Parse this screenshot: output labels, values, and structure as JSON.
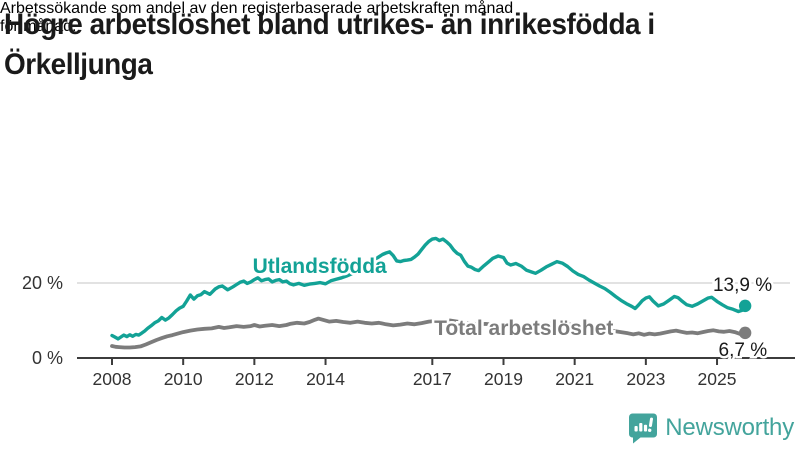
{
  "header": {
    "title_lines": [
      "Högre arbetslöshet bland utrikes- än inrikesfödda i",
      "Örkelljunga"
    ],
    "subtitle_lines": [
      "Arbetssökande som andel av den registerbaserade arbetskraften månad",
      "för månad."
    ]
  },
  "footer": {
    "brand": "Newsworthy",
    "logo_icon": "bar-chart-speech-bubble-icon"
  },
  "colors": {
    "teal": "#13a296",
    "gray": "#7c7c7c",
    "axis": "#3c3c3c",
    "grid": "#d9d9d9",
    "text": "#1a1a1a",
    "tick_text": "#333333",
    "brand_teal": "#43a49c"
  },
  "chart_data": {
    "type": "line",
    "title": "Högre arbetslöshet bland utrikes- än inrikesfödda i Örkelljunga",
    "subtitle": "Arbetssökande som andel av den registerbaserade arbetskraften månad för månad.",
    "xlabel": "",
    "ylabel": "",
    "x_axis": {
      "unit": "year",
      "ticks": [
        {
          "year": 2008,
          "label": "2008"
        },
        {
          "year": 2010,
          "label": "2010"
        },
        {
          "year": 2012,
          "label": "2012"
        },
        {
          "year": 2014,
          "label": "2014"
        },
        {
          "year": 2017,
          "label": "2017"
        },
        {
          "year": 2019,
          "label": "2019"
        },
        {
          "year": 2021,
          "label": "2021"
        },
        {
          "year": 2023,
          "label": "2023"
        },
        {
          "year": 2025,
          "label": "2025"
        }
      ]
    },
    "y_axis": {
      "unit": "%",
      "range": [
        0,
        38
      ],
      "ticks": [
        {
          "value": 20,
          "label": "20 %"
        },
        {
          "value": 0,
          "label": "0 %"
        }
      ]
    },
    "grid": "horizontal line at 20 % only",
    "legend_position": "labels inline on lines",
    "series": [
      {
        "name": "Utlandsfödda",
        "color": "#13a296",
        "end_value": 13.9,
        "end_label": "13,9 %",
        "label_pos": {
          "x": 2011.95,
          "y": 24.6
        },
        "points": [
          [
            2008.0,
            6.0
          ],
          [
            2008.08,
            5.6
          ],
          [
            2008.17,
            5.1
          ],
          [
            2008.25,
            5.6
          ],
          [
            2008.33,
            6.1
          ],
          [
            2008.42,
            5.7
          ],
          [
            2008.5,
            6.2
          ],
          [
            2008.58,
            5.8
          ],
          [
            2008.67,
            6.3
          ],
          [
            2008.75,
            6.1
          ],
          [
            2008.83,
            6.6
          ],
          [
            2008.92,
            7.2
          ],
          [
            2009.0,
            7.9
          ],
          [
            2009.1,
            8.6
          ],
          [
            2009.2,
            9.4
          ],
          [
            2009.3,
            9.9
          ],
          [
            2009.4,
            10.8
          ],
          [
            2009.5,
            10.1
          ],
          [
            2009.6,
            10.7
          ],
          [
            2009.7,
            11.6
          ],
          [
            2009.8,
            12.6
          ],
          [
            2009.9,
            13.3
          ],
          [
            2010.0,
            13.8
          ],
          [
            2010.1,
            15.2
          ],
          [
            2010.2,
            16.8
          ],
          [
            2010.3,
            15.7
          ],
          [
            2010.4,
            16.6
          ],
          [
            2010.5,
            16.9
          ],
          [
            2010.6,
            17.7
          ],
          [
            2010.75,
            17.0
          ],
          [
            2010.9,
            18.4
          ],
          [
            2011.0,
            19.0
          ],
          [
            2011.1,
            19.2
          ],
          [
            2011.25,
            18.2
          ],
          [
            2011.4,
            19.0
          ],
          [
            2011.5,
            19.6
          ],
          [
            2011.6,
            20.2
          ],
          [
            2011.7,
            20.5
          ],
          [
            2011.8,
            19.9
          ],
          [
            2011.9,
            20.3
          ],
          [
            2012.0,
            20.9
          ],
          [
            2012.1,
            21.4
          ],
          [
            2012.2,
            20.6
          ],
          [
            2012.3,
            20.9
          ],
          [
            2012.4,
            21.1
          ],
          [
            2012.5,
            20.3
          ],
          [
            2012.6,
            20.7
          ],
          [
            2012.7,
            20.9
          ],
          [
            2012.8,
            20.3
          ],
          [
            2012.9,
            20.5
          ],
          [
            2013.0,
            19.8
          ],
          [
            2013.1,
            19.5
          ],
          [
            2013.25,
            19.9
          ],
          [
            2013.4,
            19.4
          ],
          [
            2013.55,
            19.7
          ],
          [
            2013.7,
            19.9
          ],
          [
            2013.85,
            20.1
          ],
          [
            2014.0,
            19.8
          ],
          [
            2014.15,
            20.6
          ],
          [
            2014.3,
            21.0
          ],
          [
            2014.45,
            21.4
          ],
          [
            2014.6,
            21.9
          ],
          [
            2014.75,
            22.5
          ],
          [
            2014.9,
            23.4
          ],
          [
            2015.05,
            24.3
          ],
          [
            2015.2,
            25.1
          ],
          [
            2015.35,
            26.0
          ],
          [
            2015.5,
            27.0
          ],
          [
            2015.6,
            27.6
          ],
          [
            2015.7,
            28.0
          ],
          [
            2015.8,
            28.3
          ],
          [
            2015.9,
            27.3
          ],
          [
            2016.0,
            25.9
          ],
          [
            2016.1,
            25.7
          ],
          [
            2016.2,
            26.0
          ],
          [
            2016.3,
            26.1
          ],
          [
            2016.4,
            26.3
          ],
          [
            2016.5,
            26.9
          ],
          [
            2016.6,
            27.7
          ],
          [
            2016.7,
            28.9
          ],
          [
            2016.8,
            30.1
          ],
          [
            2016.9,
            31.1
          ],
          [
            2017.0,
            31.7
          ],
          [
            2017.1,
            31.9
          ],
          [
            2017.2,
            31.3
          ],
          [
            2017.3,
            31.7
          ],
          [
            2017.4,
            31.0
          ],
          [
            2017.5,
            30.1
          ],
          [
            2017.6,
            28.8
          ],
          [
            2017.7,
            27.9
          ],
          [
            2017.8,
            27.4
          ],
          [
            2017.9,
            25.8
          ],
          [
            2018.0,
            24.5
          ],
          [
            2018.1,
            24.2
          ],
          [
            2018.2,
            23.6
          ],
          [
            2018.3,
            23.3
          ],
          [
            2018.45,
            24.6
          ],
          [
            2018.6,
            25.8
          ],
          [
            2018.7,
            26.6
          ],
          [
            2018.85,
            27.2
          ],
          [
            2019.0,
            26.8
          ],
          [
            2019.1,
            25.3
          ],
          [
            2019.2,
            24.8
          ],
          [
            2019.35,
            25.2
          ],
          [
            2019.5,
            24.5
          ],
          [
            2019.65,
            23.4
          ],
          [
            2019.8,
            22.9
          ],
          [
            2019.9,
            22.6
          ],
          [
            2020.05,
            23.4
          ],
          [
            2020.2,
            24.3
          ],
          [
            2020.35,
            25.0
          ],
          [
            2020.5,
            25.7
          ],
          [
            2020.65,
            25.3
          ],
          [
            2020.8,
            24.4
          ],
          [
            2020.95,
            23.2
          ],
          [
            2021.1,
            22.3
          ],
          [
            2021.25,
            21.7
          ],
          [
            2021.4,
            20.8
          ],
          [
            2021.55,
            20.0
          ],
          [
            2021.7,
            19.2
          ],
          [
            2021.85,
            18.5
          ],
          [
            2022.0,
            17.5
          ],
          [
            2022.15,
            16.4
          ],
          [
            2022.3,
            15.4
          ],
          [
            2022.45,
            14.5
          ],
          [
            2022.6,
            13.8
          ],
          [
            2022.7,
            13.2
          ],
          [
            2022.8,
            14.2
          ],
          [
            2022.9,
            15.3
          ],
          [
            2023.0,
            16.0
          ],
          [
            2023.1,
            16.3
          ],
          [
            2023.2,
            15.2
          ],
          [
            2023.35,
            13.9
          ],
          [
            2023.5,
            14.4
          ],
          [
            2023.65,
            15.4
          ],
          [
            2023.8,
            16.4
          ],
          [
            2023.9,
            16.1
          ],
          [
            2024.0,
            15.3
          ],
          [
            2024.15,
            14.2
          ],
          [
            2024.3,
            13.8
          ],
          [
            2024.45,
            14.4
          ],
          [
            2024.6,
            15.2
          ],
          [
            2024.75,
            16.0
          ],
          [
            2024.85,
            16.2
          ],
          [
            2025.0,
            15.1
          ],
          [
            2025.15,
            14.2
          ],
          [
            2025.3,
            13.4
          ],
          [
            2025.45,
            13.0
          ],
          [
            2025.6,
            12.4
          ],
          [
            2025.7,
            12.7
          ],
          [
            2025.79,
            13.9
          ]
        ]
      },
      {
        "name": "Total arbetslöshet",
        "color": "#7c7c7c",
        "end_value": 6.7,
        "end_label": "6,7 %",
        "label_pos": {
          "x": 2017.05,
          "y": 8.0
        },
        "points": [
          [
            2008.0,
            3.2
          ],
          [
            2008.1,
            3.0
          ],
          [
            2008.2,
            2.9
          ],
          [
            2008.35,
            2.8
          ],
          [
            2008.5,
            2.8
          ],
          [
            2008.65,
            2.9
          ],
          [
            2008.8,
            3.1
          ],
          [
            2008.95,
            3.6
          ],
          [
            2009.1,
            4.2
          ],
          [
            2009.25,
            4.8
          ],
          [
            2009.4,
            5.3
          ],
          [
            2009.55,
            5.8
          ],
          [
            2009.7,
            6.1
          ],
          [
            2009.85,
            6.5
          ],
          [
            2010.0,
            6.9
          ],
          [
            2010.2,
            7.3
          ],
          [
            2010.4,
            7.6
          ],
          [
            2010.6,
            7.8
          ],
          [
            2010.8,
            7.9
          ],
          [
            2011.0,
            8.3
          ],
          [
            2011.15,
            8.0
          ],
          [
            2011.3,
            8.2
          ],
          [
            2011.5,
            8.5
          ],
          [
            2011.7,
            8.3
          ],
          [
            2011.9,
            8.5
          ],
          [
            2012.0,
            8.8
          ],
          [
            2012.15,
            8.4
          ],
          [
            2012.3,
            8.6
          ],
          [
            2012.5,
            8.8
          ],
          [
            2012.7,
            8.5
          ],
          [
            2012.9,
            8.8
          ],
          [
            2013.0,
            9.1
          ],
          [
            2013.2,
            9.4
          ],
          [
            2013.4,
            9.2
          ],
          [
            2013.55,
            9.6
          ],
          [
            2013.7,
            10.2
          ],
          [
            2013.8,
            10.5
          ],
          [
            2013.95,
            10.1
          ],
          [
            2014.1,
            9.7
          ],
          [
            2014.3,
            9.9
          ],
          [
            2014.5,
            9.6
          ],
          [
            2014.7,
            9.4
          ],
          [
            2014.9,
            9.7
          ],
          [
            2015.1,
            9.4
          ],
          [
            2015.3,
            9.2
          ],
          [
            2015.5,
            9.4
          ],
          [
            2015.7,
            9.0
          ],
          [
            2015.9,
            8.7
          ],
          [
            2016.1,
            8.9
          ],
          [
            2016.3,
            9.2
          ],
          [
            2016.5,
            9.0
          ],
          [
            2016.7,
            9.3
          ],
          [
            2016.9,
            9.7
          ],
          [
            2017.1,
            9.9
          ],
          [
            2017.3,
            10.1
          ],
          [
            2017.5,
            10.0
          ],
          [
            2017.7,
            9.7
          ],
          [
            2017.9,
            9.4
          ],
          [
            2018.1,
            9.2
          ],
          [
            2018.3,
            9.0
          ],
          [
            2018.5,
            9.1
          ],
          [
            2018.7,
            8.9
          ],
          [
            2018.9,
            8.7
          ],
          [
            2019.1,
            8.6
          ],
          [
            2019.3,
            8.5
          ],
          [
            2019.5,
            8.4
          ],
          [
            2019.7,
            8.3
          ],
          [
            2019.9,
            8.4
          ],
          [
            2020.1,
            8.7
          ],
          [
            2020.3,
            9.1
          ],
          [
            2020.5,
            9.4
          ],
          [
            2020.7,
            9.2
          ],
          [
            2020.9,
            8.9
          ],
          [
            2021.1,
            8.7
          ],
          [
            2021.3,
            8.4
          ],
          [
            2021.5,
            8.1
          ],
          [
            2021.7,
            7.8
          ],
          [
            2021.9,
            7.5
          ],
          [
            2022.1,
            7.2
          ],
          [
            2022.3,
            6.9
          ],
          [
            2022.5,
            6.6
          ],
          [
            2022.65,
            6.3
          ],
          [
            2022.8,
            6.6
          ],
          [
            2022.95,
            6.2
          ],
          [
            2023.1,
            6.5
          ],
          [
            2023.25,
            6.3
          ],
          [
            2023.4,
            6.5
          ],
          [
            2023.55,
            6.8
          ],
          [
            2023.7,
            7.1
          ],
          [
            2023.85,
            7.3
          ],
          [
            2024.0,
            7.0
          ],
          [
            2024.15,
            6.7
          ],
          [
            2024.3,
            6.8
          ],
          [
            2024.45,
            6.6
          ],
          [
            2024.6,
            6.9
          ],
          [
            2024.75,
            7.2
          ],
          [
            2024.9,
            7.4
          ],
          [
            2025.05,
            7.1
          ],
          [
            2025.2,
            7.0
          ],
          [
            2025.35,
            7.2
          ],
          [
            2025.5,
            6.9
          ],
          [
            2025.65,
            6.4
          ],
          [
            2025.79,
            6.7
          ]
        ]
      }
    ]
  }
}
